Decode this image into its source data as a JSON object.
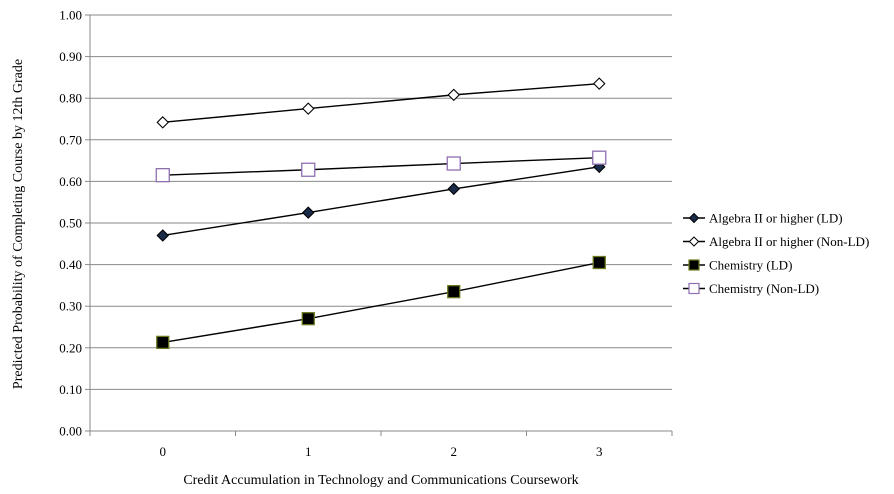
{
  "chart_data": {
    "type": "line",
    "x": [
      0,
      1,
      2,
      3
    ],
    "x_tick_labels": [
      "0",
      "1",
      "2",
      "3"
    ],
    "xlabel": "Credit Accumulation in Technology and Communications Coursework",
    "ylabel": "Predicted Probability of Completing Course by 12th Grade",
    "ylim": [
      0,
      1
    ],
    "y_ticks": [
      0,
      0.1,
      0.2,
      0.3,
      0.4,
      0.5,
      0.6,
      0.7,
      0.8,
      0.9,
      1.0
    ],
    "y_tick_labels": [
      "0.00",
      "0.10",
      "0.20",
      "0.30",
      "0.40",
      "0.50",
      "0.60",
      "0.70",
      "0.80",
      "0.90",
      "1.00"
    ],
    "grid": "horizontal",
    "legend_position": "right",
    "series": [
      {
        "name": "Algebra II or higher (LD)",
        "values": [
          0.47,
          0.525,
          0.582,
          0.635
        ],
        "marker": "filled-diamond",
        "color": "#000000",
        "marker_fill": "#1a2b4a"
      },
      {
        "name": "Algebra II or higher (Non-LD)",
        "values": [
          0.742,
          0.775,
          0.808,
          0.835
        ],
        "marker": "open-diamond",
        "color": "#000000",
        "marker_fill": "#ffffff"
      },
      {
        "name": "Chemistry (LD)",
        "values": [
          0.213,
          0.27,
          0.335,
          0.405
        ],
        "marker": "filled-square",
        "color": "#000000",
        "marker_fill": "#000000",
        "marker_stroke": "#6b7a1e"
      },
      {
        "name": "Chemistry (Non-LD)",
        "values": [
          0.615,
          0.628,
          0.643,
          0.657
        ],
        "marker": "open-square",
        "color": "#000000",
        "marker_fill": "#ffffff",
        "marker_stroke": "#8e6fb0"
      }
    ]
  }
}
